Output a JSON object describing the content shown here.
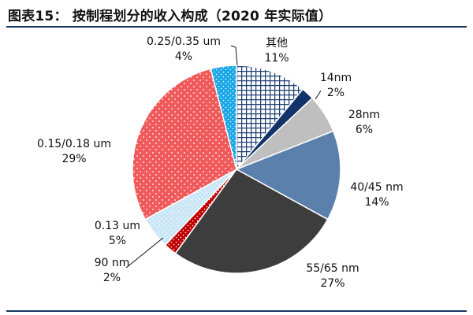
{
  "title": "图表15： 按制程划分的收入构成（2020 年实际值）",
  "chart_data": {
    "type": "pie",
    "title": "按制程划分的收入构成（2020 年实际值）",
    "start": "12 o'clock, clockwise",
    "slices": [
      {
        "key": "other",
        "name": "其他",
        "pct": "11%",
        "value": 11,
        "color": "#1f3f73",
        "pattern": "grid"
      },
      {
        "key": "14nm",
        "name": "14nm",
        "pct": "2%",
        "value": 2,
        "color": "#13336b",
        "pattern": "solid"
      },
      {
        "key": "28nm",
        "name": "28nm",
        "pct": "6%",
        "value": 6,
        "color": "#bfbfbf",
        "pattern": "solid"
      },
      {
        "key": "40_45",
        "name": "40/45 nm",
        "pct": "14%",
        "value": 14,
        "color": "#5b80ac",
        "pattern": "solid"
      },
      {
        "key": "55_65",
        "name": "55/65 nm",
        "pct": "27%",
        "value": 27,
        "color": "#3d3d3d",
        "pattern": "solid"
      },
      {
        "key": "90",
        "name": "90 nm",
        "pct": "2%",
        "value": 2,
        "color": "#c00000",
        "pattern": "dots"
      },
      {
        "key": "013",
        "name": "0.13 um",
        "pct": "5%",
        "value": 5,
        "color": "#c9e6f7",
        "pattern": "dots"
      },
      {
        "key": "015_018",
        "name": "0.15/0.18 um",
        "pct": "29%",
        "value": 29,
        "color": "#f05a5a",
        "pattern": "dots"
      },
      {
        "key": "025_035",
        "name": "0.25/0.35 um",
        "pct": "4%",
        "value": 4,
        "color": "#1aa7e6",
        "pattern": "dots"
      }
    ]
  }
}
